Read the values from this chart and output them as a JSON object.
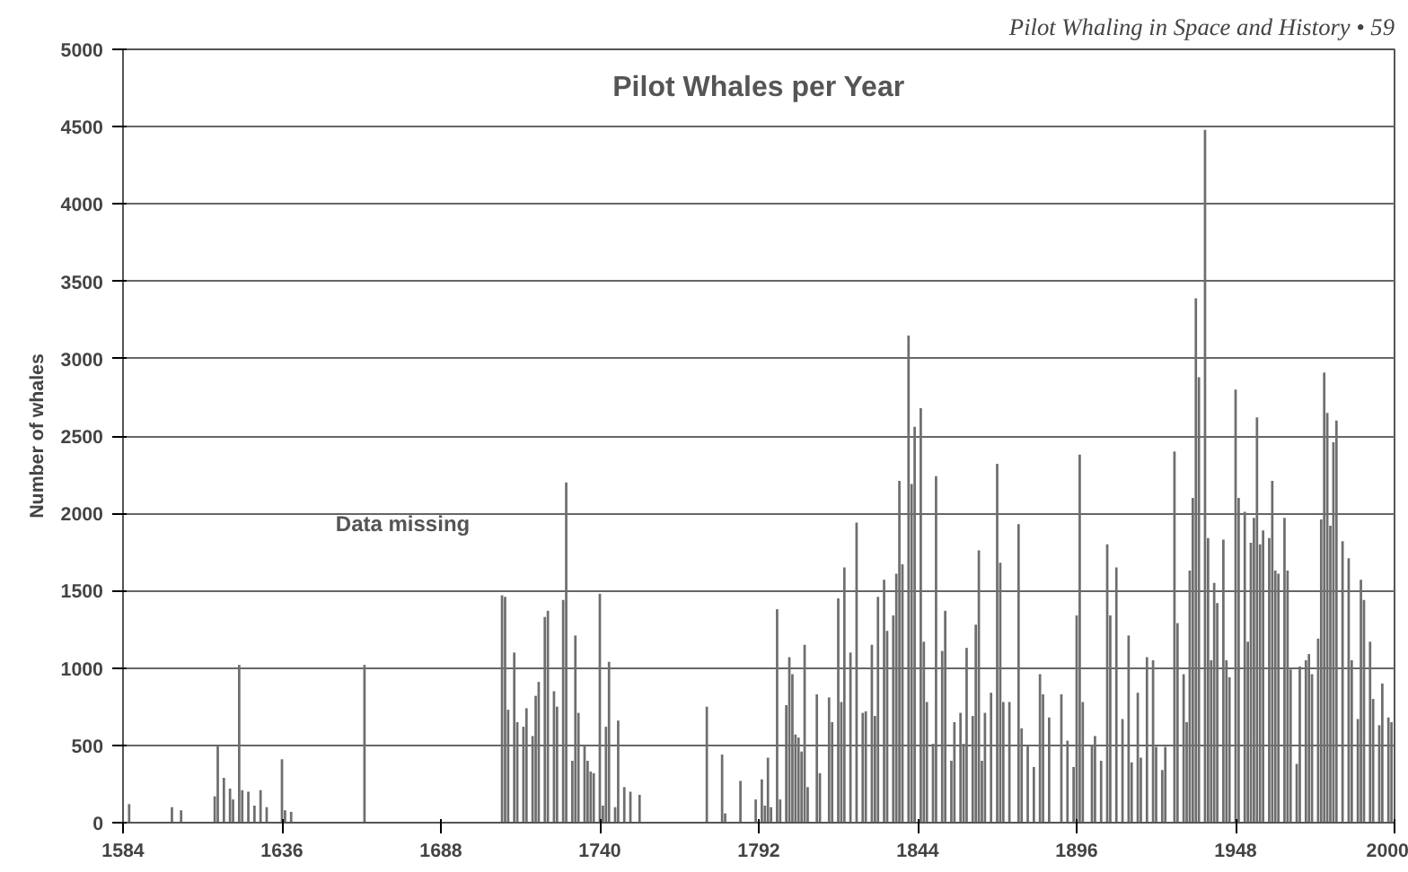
{
  "chart_data": {
    "type": "bar",
    "title": "Pilot Whales per Year",
    "ylabel": "Number of whales",
    "annotations": [
      "Pilot Whaling in Space and History • 59",
      "Data missing"
    ],
    "x": [
      1586,
      1600,
      1603,
      1614,
      1615,
      1617,
      1619,
      1620,
      1622,
      1623,
      1625,
      1627,
      1629,
      1631,
      1636,
      1637,
      1639,
      1663,
      1708,
      1709,
      1710,
      1712,
      1713,
      1715,
      1716,
      1718,
      1719,
      1720,
      1722,
      1723,
      1725,
      1726,
      1728,
      1729,
      1731,
      1732,
      1733,
      1735,
      1736,
      1737,
      1738,
      1740,
      1741,
      1742,
      1743,
      1745,
      1746,
      1748,
      1750,
      1753,
      1775,
      1780,
      1781,
      1786,
      1791,
      1793,
      1794,
      1795,
      1796,
      1798,
      1799,
      1801,
      1802,
      1803,
      1804,
      1805,
      1806,
      1807,
      1808,
      1811,
      1812,
      1815,
      1816,
      1818,
      1819,
      1820,
      1822,
      1824,
      1826,
      1827,
      1829,
      1830,
      1831,
      1833,
      1834,
      1836,
      1837,
      1838,
      1839,
      1841,
      1842,
      1843,
      1845,
      1846,
      1847,
      1849,
      1850,
      1852,
      1853,
      1855,
      1856,
      1858,
      1859,
      1860,
      1862,
      1863,
      1864,
      1865,
      1866,
      1868,
      1870,
      1871,
      1872,
      1874,
      1877,
      1878,
      1880,
      1882,
      1884,
      1885,
      1887,
      1891,
      1893,
      1895,
      1896,
      1897,
      1898,
      1901,
      1902,
      1904,
      1906,
      1907,
      1909,
      1911,
      1913,
      1914,
      1916,
      1917,
      1919,
      1921,
      1922,
      1924,
      1925,
      1928,
      1929,
      1931,
      1932,
      1933,
      1934,
      1935,
      1936,
      1938,
      1939,
      1940,
      1941,
      1942,
      1944,
      1945,
      1946,
      1948,
      1949,
      1951,
      1952,
      1953,
      1954,
      1955,
      1956,
      1957,
      1959,
      1960,
      1961,
      1962,
      1964,
      1965,
      1966,
      1968,
      1969,
      1971,
      1972,
      1973,
      1975,
      1976,
      1977,
      1978,
      1979,
      1980,
      1981,
      1983,
      1985,
      1986,
      1988,
      1989,
      1990,
      1992,
      1993,
      1995,
      1996,
      1998,
      1999
    ],
    "values": [
      120,
      100,
      80,
      170,
      500,
      290,
      220,
      150,
      1020,
      210,
      200,
      110,
      210,
      100,
      410,
      80,
      70,
      1020,
      1470,
      1460,
      730,
      1100,
      650,
      620,
      740,
      560,
      820,
      910,
      1330,
      1370,
      850,
      750,
      1440,
      2200,
      400,
      1210,
      710,
      500,
      400,
      330,
      320,
      1480,
      110,
      620,
      1040,
      100,
      660,
      230,
      200,
      180,
      750,
      440,
      60,
      270,
      150,
      280,
      110,
      420,
      100,
      1380,
      150,
      760,
      1070,
      960,
      570,
      550,
      460,
      1150,
      230,
      830,
      320,
      810,
      650,
      1450,
      780,
      1650,
      1100,
      1940,
      710,
      720,
      1150,
      690,
      1460,
      1570,
      1240,
      1340,
      1610,
      2210,
      1670,
      3150,
      2190,
      2560,
      2680,
      1170,
      780,
      510,
      2240,
      1110,
      1370,
      400,
      650,
      710,
      510,
      1130,
      690,
      1280,
      1760,
      400,
      710,
      840,
      2320,
      1680,
      780,
      780,
      1930,
      610,
      500,
      360,
      960,
      830,
      680,
      830,
      530,
      360,
      1340,
      2380,
      780,
      500,
      560,
      400,
      1800,
      1340,
      1650,
      670,
      1210,
      390,
      840,
      420,
      1070,
      1050,
      490,
      340,
      490,
      2400,
      1290,
      960,
      650,
      1630,
      2100,
      3390,
      2880,
      4480,
      1840,
      1050,
      1550,
      1420,
      1830,
      1050,
      940,
      2800,
      2100,
      2010,
      1170,
      1810,
      1970,
      2620,
      1800,
      1890,
      1840,
      2210,
      1630,
      1610,
      1970,
      1630,
      990,
      380,
      1010,
      1050,
      1090,
      960,
      1190,
      1960,
      2910,
      2650,
      1920,
      2460,
      2600,
      1820,
      1710,
      1050,
      670,
      1570,
      1440,
      1170,
      800,
      630,
      900,
      680,
      650
    ],
    "color": "#6e6e6e",
    "xlim": [
      1584,
      2000
    ],
    "xticks": [
      1584,
      1636,
      1688,
      1740,
      1792,
      1844,
      1896,
      1948,
      2000
    ],
    "ylim": [
      0,
      5000
    ],
    "yticks": [
      0,
      500,
      1000,
      1500,
      2000,
      2500,
      3000,
      3500,
      4000,
      4500,
      5000
    ],
    "grid": "y"
  }
}
